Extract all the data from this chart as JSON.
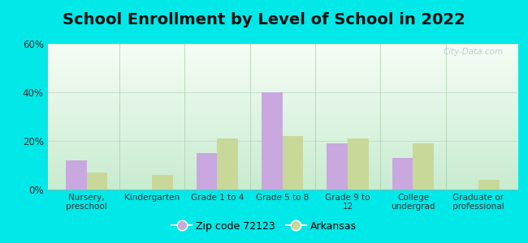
{
  "title": "School Enrollment by Level of School in 2022",
  "categories": [
    "Nursery,\npreschool",
    "Kindergarten",
    "Grade 1 to 4",
    "Grade 5 to 8",
    "Grade 9 to\n12",
    "College\nundergrad",
    "Graduate or\nprofessional"
  ],
  "zip_values": [
    12,
    0,
    15,
    40,
    19,
    13,
    0
  ],
  "ark_values": [
    7,
    6,
    21,
    22,
    21,
    19,
    4
  ],
  "zip_color": "#c9a8e0",
  "ark_color": "#c8d898",
  "background_outer": "#00e8e8",
  "ytick_labels": [
    "0%",
    "20%",
    "40%",
    "60%"
  ],
  "ytick_values": [
    0,
    20,
    40,
    60
  ],
  "ylim": [
    0,
    60
  ],
  "legend_zip_label": "Zip code 72123",
  "legend_ark_label": "Arkansas",
  "bar_width": 0.32,
  "title_fontsize": 14,
  "watermark": "City-Data.com"
}
